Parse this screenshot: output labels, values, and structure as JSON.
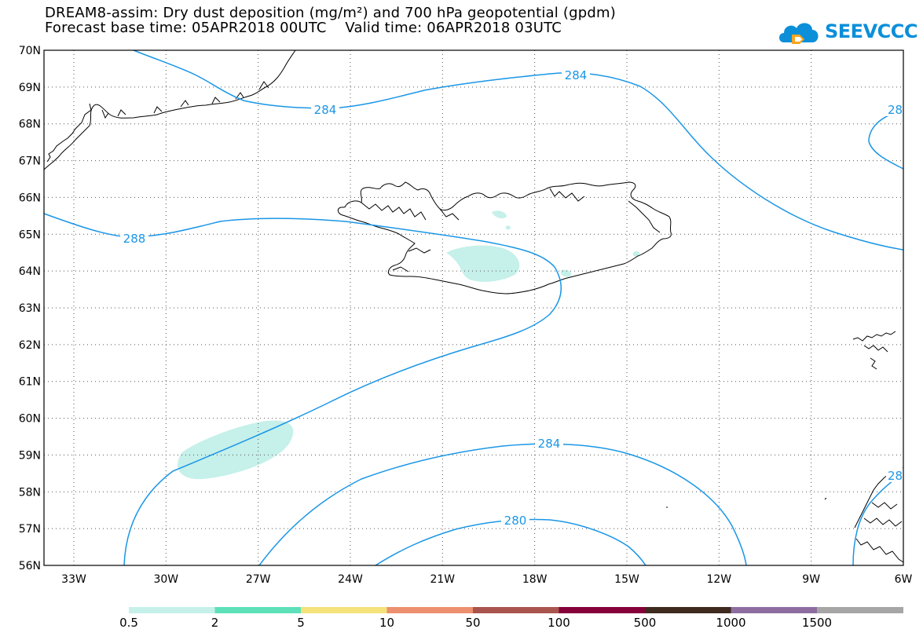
{
  "title": {
    "line1": "DREAM8-assim: Dry dust deposition (mg/m²) and 700 hPa geopotential (gpdm)",
    "line2": "Forecast base time: 05APR2018 00UTC    Valid time: 06APR2018 03UTC"
  },
  "logo": {
    "text": "SEEVCCC",
    "icon": "cloud-icon",
    "color": "#0b8fd9"
  },
  "map": {
    "lat_labels": [
      "70N",
      "69N",
      "68N",
      "67N",
      "66N",
      "65N",
      "64N",
      "63N",
      "62N",
      "61N",
      "60N",
      "59N",
      "58N",
      "57N",
      "56N"
    ],
    "lon_labels": [
      "33W",
      "30W",
      "27W",
      "24W",
      "21W",
      "18W",
      "15W",
      "12W",
      "9W",
      "6W"
    ],
    "grid": "dotted",
    "contour_color": "#1a96e6",
    "contour_labels": [
      {
        "text": "284",
        "note": "north contour west"
      },
      {
        "text": "284",
        "note": "north contour east"
      },
      {
        "text": "28",
        "note": "edge label top-right"
      },
      {
        "text": "288",
        "note": "west contour"
      },
      {
        "text": "284",
        "note": "south contour"
      },
      {
        "text": "280",
        "note": "inner south contour"
      },
      {
        "text": "28",
        "note": "edge label bottom-right"
      }
    ],
    "dust_color": "#c6f0ea"
  },
  "colorbar": {
    "colors": [
      "#c6f0ea",
      "#5ee0b8",
      "#f5e27a",
      "#ec9070",
      "#a9554e",
      "#85003a",
      "#3e2a1e",
      "#8e6ea0",
      "#a6a6a6"
    ],
    "labels": [
      "0.5",
      "2",
      "5",
      "10",
      "50",
      "100",
      "500",
      "1000",
      "1500"
    ]
  }
}
